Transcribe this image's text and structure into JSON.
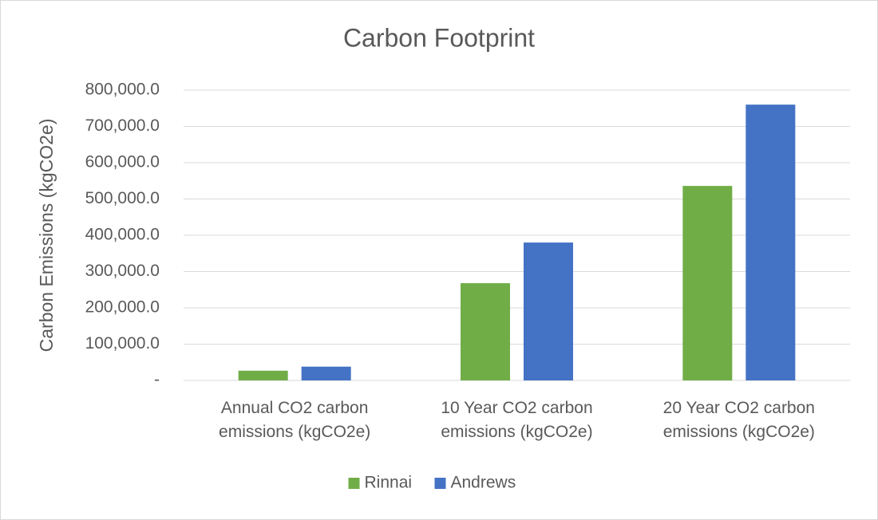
{
  "chart_data": {
    "type": "bar",
    "title": "Carbon Footprint",
    "y_label": "Carbon Emissions (kgCO2e)",
    "categories": [
      "Annual CO2 carbon emissions (kgCO2e)",
      "10 Year CO2 carbon emissions (kgCO2e)",
      "20 Year CO2 carbon emissions (kgCO2e)"
    ],
    "series": [
      {
        "name": "Rinnai",
        "color": "#70ad47",
        "values": [
          26800,
          268000,
          536000
        ]
      },
      {
        "name": "Andrews",
        "color": "#4472c4",
        "values": [
          38000,
          380000,
          760000
        ]
      }
    ],
    "ylim": [
      0,
      800000
    ],
    "yticks": [
      {
        "value": 0,
        "label": "-"
      },
      {
        "value": 100000,
        "label": "100,000.0"
      },
      {
        "value": 200000,
        "label": "200,000.0"
      },
      {
        "value": 300000,
        "label": "300,000.0"
      },
      {
        "value": 400000,
        "label": "400,000.0"
      },
      {
        "value": 500000,
        "label": "500,000.0"
      },
      {
        "value": 600000,
        "label": "600,000.0"
      },
      {
        "value": 700000,
        "label": "700,000.0"
      },
      {
        "value": 800000,
        "label": "800,000.0"
      }
    ],
    "grid": true,
    "legend": "bottom"
  }
}
